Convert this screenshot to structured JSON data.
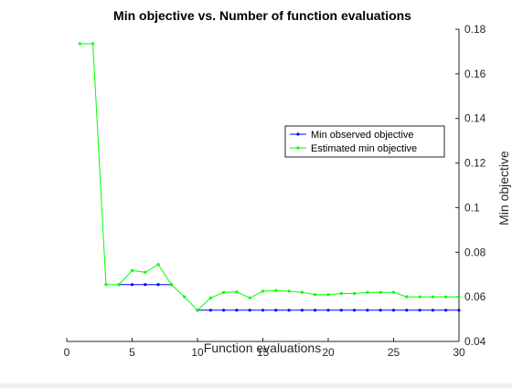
{
  "chart_data": {
    "type": "line",
    "title": "Min objective vs. Number of function evaluations",
    "xlabel": "Function evaluations",
    "ylabel": "Min objective",
    "xlim": [
      0,
      30
    ],
    "ylim": [
      0.04,
      0.18
    ],
    "x_ticks": [
      0,
      5,
      10,
      15,
      20,
      25,
      30
    ],
    "y_ticks": [
      0.04,
      0.06,
      0.08,
      0.1,
      0.12,
      0.14,
      0.16,
      0.18
    ],
    "y_axis_side": "right",
    "grid": false,
    "legend_location": "center-right",
    "x": [
      1,
      2,
      3,
      4,
      5,
      6,
      7,
      8,
      9,
      10,
      11,
      12,
      13,
      14,
      15,
      16,
      17,
      18,
      19,
      20,
      21,
      22,
      23,
      24,
      25,
      26,
      27,
      28,
      29,
      30
    ],
    "series": [
      {
        "name": "Min observed objective",
        "color": "#0000ff",
        "values": [
          null,
          null,
          null,
          0.0655,
          0.0655,
          0.0655,
          0.0655,
          0.0655,
          null,
          0.054,
          0.054,
          0.054,
          0.054,
          0.054,
          0.054,
          0.054,
          0.054,
          0.054,
          0.054,
          0.054,
          0.054,
          0.054,
          0.054,
          0.054,
          0.054,
          0.054,
          0.054,
          0.054,
          0.054,
          0.054
        ]
      },
      {
        "name": "Estimated min objective",
        "color": "#00ff00",
        "values": [
          0.1735,
          0.1735,
          0.0655,
          0.0655,
          0.0718,
          0.071,
          0.0745,
          0.0655,
          0.06,
          0.054,
          0.0595,
          0.062,
          0.0622,
          0.0595,
          0.0625,
          0.0628,
          0.0625,
          0.062,
          0.061,
          0.061,
          0.0615,
          0.0615,
          0.062,
          0.062,
          0.062,
          0.06,
          0.06,
          0.06,
          0.06,
          0.06
        ]
      }
    ]
  }
}
